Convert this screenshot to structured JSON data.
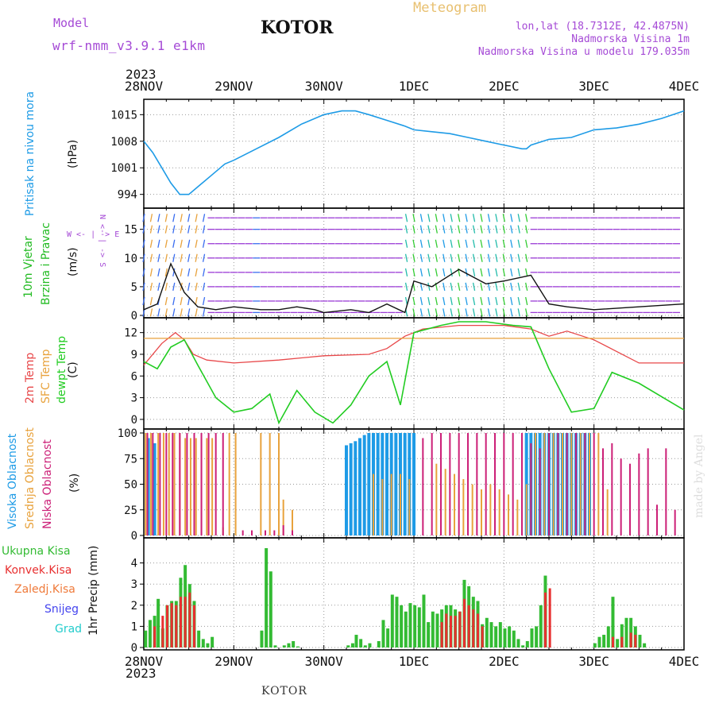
{
  "header": {
    "model_label": "Model",
    "model_name": "wrf-nmm_v3.9.1 e1km",
    "city": "KOTOR",
    "product": "Meteogram",
    "lonlat": "lon,lat (18.7312E, 42.4875N)",
    "elev": "Nadmorska Visina 1m",
    "model_elev": "Nadmorska Visina u modelu 179.035m",
    "footer_city": "KOTOR",
    "credit": "made by Angel"
  },
  "colors": {
    "pressure": "#1e9be6",
    "wind_green": "#22bb22",
    "temp2m": "#e8484a",
    "sfc": "#e8a23c",
    "dewpt": "#22cc22",
    "high_cloud": "#1e9be6",
    "mid_cloud": "#e8a23c",
    "low_cloud": "#cc1f77",
    "total": "#33bb33",
    "conv": "#e83030",
    "frozen": "#ef7a3a",
    "snow": "#4444ee",
    "hail": "#22cccc",
    "text_purple": "#a54ad6",
    "text_orange": "#e8c070",
    "grid": "#999999"
  },
  "time_axis": {
    "year_label": "2023",
    "ticks": [
      "28NOV",
      "29NOV",
      "30NOV",
      "1DEC",
      "2DEC",
      "3DEC",
      "4DEC"
    ]
  },
  "panel_labels": {
    "pressure": {
      "name": "Pritisak na nivou mora",
      "unit": "(hPa)"
    },
    "wind": {
      "name1": "10m Vjetar",
      "name2": "Brzina i Pravac",
      "unit": "(m/s)",
      "compass": [
        "W",
        "<-",
        "|",
        "->",
        "E",
        "N",
        "<-",
        "|",
        "->",
        "S"
      ]
    },
    "temp": {
      "name1": "2m Temp",
      "name2": "SFC Temp",
      "name3": "dewpt Temp",
      "unit": "(C)"
    },
    "cloud": {
      "name1": "Visoka Oblacnost",
      "name2": "Srednja Oblacnost",
      "name3": "Niska Oblacnost",
      "unit": "(%)"
    },
    "precip": {
      "total": "Ukupna Kisa",
      "conv": "Konvek.Kisa",
      "frozen": "Zaledj.Kisa",
      "snow": "Snijeg",
      "hail": "Grad",
      "unit": "1hr Precip (mm)"
    }
  },
  "chart_data": [
    {
      "type": "line",
      "panel": "pressure",
      "ylabel": "(hPa)",
      "yticks": [
        994,
        1001,
        1008,
        1015
      ],
      "ylim": [
        991,
        1018
      ],
      "x": [
        0,
        0.1,
        0.2,
        0.3,
        0.4,
        0.5,
        0.6,
        0.75,
        0.9,
        1.0,
        1.25,
        1.5,
        1.75,
        2.0,
        2.2,
        2.35,
        2.5,
        2.7,
        2.9,
        3.0,
        3.2,
        3.4,
        3.6,
        3.8,
        4.0,
        4.2,
        4.25,
        4.3,
        4.5,
        4.75,
        5.0,
        5.25,
        5.5,
        5.75,
        6.0
      ],
      "values": [
        1008,
        1005,
        1001,
        997,
        994,
        994,
        996,
        999,
        1002,
        1003,
        1006,
        1009,
        1012.5,
        1015,
        1016,
        1016,
        1015,
        1013.5,
        1012,
        1011,
        1010.5,
        1010,
        1009,
        1008,
        1007,
        1006,
        1006,
        1007,
        1008.5,
        1009,
        1011,
        1011.5,
        1012.5,
        1014,
        1016
      ]
    },
    {
      "type": "line",
      "panel": "wind",
      "ylabel": "(m/s)",
      "yticks": [
        0,
        5,
        10,
        15
      ],
      "ylim": [
        0,
        18
      ],
      "x": [
        0,
        0.15,
        0.3,
        0.45,
        0.6,
        0.8,
        1.0,
        1.3,
        1.5,
        1.7,
        1.9,
        2.0,
        2.3,
        2.5,
        2.7,
        2.9,
        3.0,
        3.2,
        3.5,
        3.8,
        4.0,
        4.3,
        4.5,
        4.7,
        5.0,
        5.5,
        6.0
      ],
      "values": [
        1,
        2,
        9,
        4,
        1.5,
        1,
        1.5,
        1,
        1,
        1.5,
        1,
        0.5,
        1,
        0.5,
        2,
        0.5,
        6,
        5,
        8,
        5.5,
        6,
        7,
        2,
        1.5,
        1,
        1.5,
        2
      ]
    },
    {
      "type": "line",
      "panel": "temperature",
      "ylabel": "(C)",
      "yticks": [
        0,
        3,
        6,
        9,
        12
      ],
      "ylim": [
        -1,
        13.5
      ],
      "series": [
        {
          "name": "2m Temp",
          "color_key": "temp2m",
          "x": [
            0,
            0.2,
            0.35,
            0.45,
            0.55,
            0.7,
            1.0,
            1.5,
            2.0,
            2.5,
            2.7,
            2.9,
            3.1,
            3.5,
            4.0,
            4.3,
            4.5,
            4.7,
            5.0,
            5.5,
            6.0
          ],
          "values": [
            7.5,
            10.5,
            12,
            11,
            9,
            8.2,
            7.8,
            8.2,
            8.8,
            9.0,
            9.8,
            11.5,
            12.5,
            13,
            13,
            12.5,
            11.5,
            12.2,
            11,
            7.8,
            7.8
          ]
        },
        {
          "name": "SFC Temp",
          "color_key": "sfc",
          "x": [
            0,
            6
          ],
          "values": [
            11.2,
            11.2
          ]
        },
        {
          "name": "dewpt Temp",
          "color_key": "dewpt",
          "x": [
            0,
            0.15,
            0.3,
            0.45,
            0.6,
            0.8,
            1.0,
            1.2,
            1.4,
            1.5,
            1.7,
            1.9,
            2.1,
            2.3,
            2.5,
            2.7,
            2.85,
            3.0,
            3.3,
            3.5,
            3.8,
            4.1,
            4.3,
            4.5,
            4.75,
            5.0,
            5.2,
            5.5,
            6.0
          ],
          "values": [
            8,
            7,
            10,
            11,
            7.5,
            3,
            1,
            1.5,
            3.5,
            -0.5,
            4,
            1,
            -0.5,
            2,
            6,
            8,
            2,
            12,
            13,
            13.5,
            13.5,
            13,
            12.8,
            7,
            1,
            1.5,
            6.5,
            5,
            1.3
          ]
        }
      ]
    },
    {
      "type": "bar",
      "panel": "cloud",
      "ylabel": "(%)",
      "yticks": [
        0,
        25,
        50,
        75,
        100
      ],
      "ylim": [
        0,
        100
      ],
      "series": [
        {
          "name": "Visoka Oblacnost",
          "color_key": "high_cloud",
          "x": [
            0.05,
            0.12,
            2.25,
            2.3,
            2.35,
            2.4,
            2.45,
            2.5,
            2.55,
            2.6,
            2.65,
            2.7,
            2.75,
            2.8,
            2.85,
            2.9,
            2.95,
            3.0,
            4.25,
            4.3,
            4.35,
            4.4,
            4.45,
            4.5,
            4.55,
            4.6,
            4.65,
            4.7,
            4.75,
            4.8,
            4.85,
            4.9,
            4.95
          ],
          "values": [
            95,
            90,
            88,
            90,
            92,
            95,
            98,
            100,
            100,
            100,
            100,
            100,
            100,
            100,
            100,
            100,
            100,
            100,
            100,
            100,
            100,
            100,
            100,
            100,
            100,
            100,
            100,
            100,
            100,
            100,
            100,
            100,
            100
          ]
        },
        {
          "name": "Srednja Oblacnost",
          "color_key": "mid_cloud",
          "x": [
            0.02,
            0.08,
            0.16,
            0.22,
            0.28,
            0.34,
            0.4,
            0.46,
            0.52,
            0.58,
            0.64,
            0.7,
            0.76,
            0.88,
            0.95,
            1.02,
            1.3,
            1.4,
            1.5,
            1.55,
            1.65,
            2.55,
            2.65,
            2.75,
            2.85,
            2.95,
            3.25,
            3.35,
            3.45,
            3.55,
            3.65,
            3.75,
            3.85,
            3.95,
            4.05,
            4.15,
            4.25,
            4.35,
            4.45,
            4.55,
            4.65,
            4.75,
            4.85,
            4.95,
            5.05,
            5.15
          ],
          "values": [
            100,
            100,
            100,
            100,
            100,
            100,
            100,
            95,
            95,
            95,
            95,
            95,
            95,
            8,
            100,
            100,
            100,
            100,
            100,
            35,
            25,
            60,
            55,
            60,
            60,
            55,
            70,
            65,
            60,
            55,
            50,
            45,
            50,
            45,
            40,
            35,
            50,
            100,
            100,
            100,
            100,
            100,
            100,
            100,
            100,
            45
          ]
        },
        {
          "name": "Niska Oblacnost",
          "color_key": "low_cloud",
          "x": [
            0.04,
            0.1,
            0.18,
            0.25,
            0.32,
            0.4,
            0.48,
            0.56,
            0.64,
            0.72,
            0.8,
            0.88,
            1.1,
            1.2,
            1.35,
            1.45,
            1.55,
            1.65,
            3.1,
            3.2,
            3.3,
            3.4,
            3.5,
            3.6,
            3.7,
            3.8,
            3.9,
            4.0,
            4.1,
            4.2,
            4.3,
            4.4,
            4.5,
            4.6,
            4.7,
            4.8,
            4.9,
            5.0,
            5.1,
            5.2,
            5.3,
            5.4,
            5.5,
            5.6,
            5.7,
            5.8,
            5.9
          ],
          "values": [
            100,
            100,
            100,
            100,
            100,
            100,
            100,
            100,
            100,
            100,
            100,
            100,
            5,
            5,
            5,
            5,
            10,
            5,
            95,
            100,
            100,
            100,
            100,
            100,
            100,
            100,
            100,
            100,
            100,
            100,
            90,
            85,
            100,
            100,
            100,
            100,
            100,
            100,
            85,
            90,
            75,
            70,
            80,
            85,
            30,
            85,
            25
          ]
        }
      ]
    },
    {
      "type": "bar",
      "panel": "precipitation",
      "ylabel": "1hr Precip (mm)",
      "yticks": [
        0,
        1,
        2,
        3,
        4
      ],
      "ylim": [
        0,
        5
      ],
      "series": [
        {
          "name": "Ukupna Kisa",
          "color_key": "total",
          "x": [
            0.02,
            0.07,
            0.12,
            0.16,
            0.21,
            0.26,
            0.31,
            0.36,
            0.41,
            0.46,
            0.51,
            0.56,
            0.61,
            0.66,
            0.71,
            0.76,
            1.31,
            1.36,
            1.41,
            1.46,
            1.56,
            1.61,
            1.66,
            1.71,
            2.27,
            2.32,
            2.36,
            2.41,
            2.46,
            2.51,
            2.61,
            2.66,
            2.71,
            2.76,
            2.81,
            2.86,
            2.91,
            2.96,
            3.01,
            3.06,
            3.11,
            3.16,
            3.21,
            3.26,
            3.31,
            3.36,
            3.41,
            3.46,
            3.51,
            3.56,
            3.61,
            3.66,
            3.71,
            3.76,
            3.81,
            3.86,
            3.91,
            3.96,
            4.01,
            4.06,
            4.11,
            4.16,
            4.21,
            4.26,
            4.31,
            4.36,
            4.41,
            4.46,
            5.01,
            5.06,
            5.11,
            5.16,
            5.21,
            5.26,
            5.31,
            5.36,
            5.41,
            5.46,
            5.51,
            5.56
          ],
          "values": [
            0.8,
            1.3,
            1.5,
            2.3,
            0.9,
            2.0,
            2.2,
            2.2,
            3.3,
            3.9,
            3.0,
            2.2,
            0.8,
            0.4,
            0.2,
            0.5,
            0.8,
            4.7,
            3.6,
            0.1,
            0.1,
            0.2,
            0.3,
            0.05,
            0.1,
            0.2,
            0.6,
            0.4,
            0.1,
            0.2,
            0.3,
            1.3,
            0.9,
            2.5,
            2.4,
            2.0,
            1.7,
            2.1,
            2.0,
            1.9,
            2.5,
            1.2,
            1.7,
            1.6,
            1.8,
            2.0,
            2.0,
            1.8,
            1.7,
            3.2,
            2.9,
            2.4,
            2.2,
            1.1,
            1.4,
            1.2,
            1.0,
            1.2,
            0.9,
            1.0,
            0.8,
            0.4,
            0.1,
            0.3,
            0.9,
            1.0,
            2.0,
            3.4,
            0.2,
            0.5,
            0.6,
            1.0,
            2.4,
            0.4,
            1.1,
            1.4,
            1.4,
            1.0,
            0.6,
            0.2
          ]
        },
        {
          "name": "Konvek.Kisa",
          "color_key": "conv",
          "x": [
            0.12,
            0.21,
            0.26,
            0.31,
            0.36,
            0.41,
            0.46,
            0.51,
            0.56,
            3.31,
            3.36,
            3.41,
            3.46,
            3.51,
            3.56,
            3.61,
            3.66,
            3.71,
            3.76,
            4.46,
            4.51,
            5.21,
            5.31,
            5.41,
            5.46
          ],
          "values": [
            1.0,
            1.5,
            2.0,
            2.1,
            2.0,
            2.4,
            2.4,
            2.6,
            2.0,
            1.2,
            1.6,
            1.5,
            1.5,
            1.7,
            2.3,
            2.0,
            1.8,
            1.6,
            1.0,
            2.6,
            2.8,
            0.5,
            0.5,
            0.7,
            0.6
          ]
        }
      ]
    }
  ]
}
